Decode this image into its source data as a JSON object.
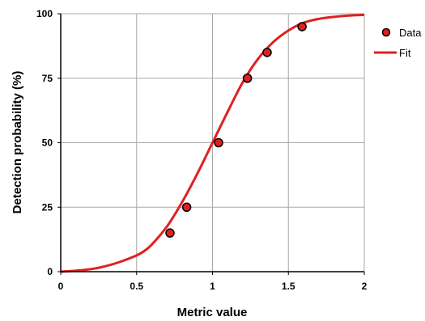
{
  "chart_data": {
    "type": "scatter",
    "title": "",
    "xlabel": "Metric value",
    "ylabel": "Detection probability (%)",
    "xlim": [
      0,
      2
    ],
    "ylim": [
      0,
      100
    ],
    "x_ticks": [
      "0",
      "0.5",
      "1",
      "1.5",
      "2"
    ],
    "y_ticks": [
      "0",
      "25",
      "50",
      "75",
      "100"
    ],
    "grid": true,
    "legend_position": "top-right",
    "series": [
      {
        "name": "Data",
        "kind": "points",
        "color": "#e02020",
        "x": [
          0.72,
          0.83,
          1.04,
          1.23,
          1.36,
          1.59
        ],
        "y": [
          15,
          25,
          50,
          75,
          85,
          95
        ]
      },
      {
        "name": "Fit",
        "kind": "line",
        "color": "#e02020",
        "x": [
          0,
          0.1,
          0.2,
          0.3,
          0.4,
          0.5,
          0.55,
          0.6,
          0.7,
          0.8,
          0.9,
          1.0,
          1.1,
          1.2,
          1.3,
          1.4,
          1.5,
          1.6,
          1.7,
          1.8,
          1.9,
          2.0
        ],
        "y": [
          0,
          0.4,
          1.0,
          2.2,
          4.0,
          6.3,
          8.0,
          10.5,
          17.5,
          27.0,
          38.0,
          50.0,
          62.0,
          73.5,
          82.5,
          89.0,
          93.5,
          96.5,
          98.0,
          98.8,
          99.3,
          99.6
        ]
      }
    ]
  }
}
